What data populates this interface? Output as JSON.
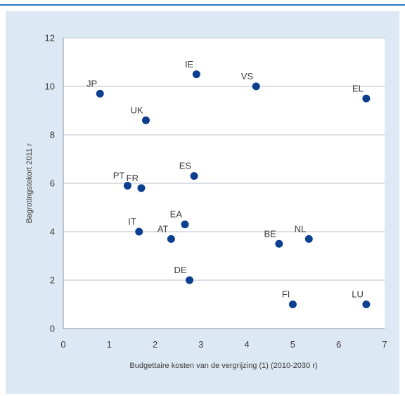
{
  "colors": {
    "accent": "#2e78c0",
    "panel": "#dce8f3",
    "plot_bg": "#ffffff",
    "marker": "#0d3f8f",
    "grid": "#cfd6de"
  },
  "chart_data": {
    "type": "scatter",
    "title": "",
    "xlabel": "Budgettaire kosten van de vergrijzing (1) (2010-2030 r)",
    "ylabel": "Begrotingstekort 2011 r",
    "xlim": [
      0,
      7
    ],
    "ylim": [
      0,
      12
    ],
    "xticks": [
      0,
      1,
      2,
      3,
      4,
      5,
      6,
      7
    ],
    "yticks": [
      0,
      2,
      4,
      6,
      8,
      10,
      12
    ],
    "grid": "horizontal",
    "points": [
      {
        "label": "JP",
        "x": 0.8,
        "y": 9.7
      },
      {
        "label": "IE",
        "x": 2.9,
        "y": 10.5
      },
      {
        "label": "VS",
        "x": 4.2,
        "y": 10.0
      },
      {
        "label": "EL",
        "x": 6.6,
        "y": 9.5
      },
      {
        "label": "UK",
        "x": 1.8,
        "y": 8.6
      },
      {
        "label": "PT",
        "x": 1.4,
        "y": 5.9
      },
      {
        "label": "FR",
        "x": 1.7,
        "y": 5.8
      },
      {
        "label": "ES",
        "x": 2.85,
        "y": 6.3
      },
      {
        "label": "IT",
        "x": 1.65,
        "y": 4.0
      },
      {
        "label": "EA",
        "x": 2.65,
        "y": 4.3
      },
      {
        "label": "AT",
        "x": 2.35,
        "y": 3.7
      },
      {
        "label": "BE",
        "x": 4.7,
        "y": 3.5
      },
      {
        "label": "NL",
        "x": 5.35,
        "y": 3.7
      },
      {
        "label": "DE",
        "x": 2.75,
        "y": 2.0
      },
      {
        "label": "FI",
        "x": 5.0,
        "y": 1.0
      },
      {
        "label": "LU",
        "x": 6.6,
        "y": 1.0
      }
    ]
  }
}
